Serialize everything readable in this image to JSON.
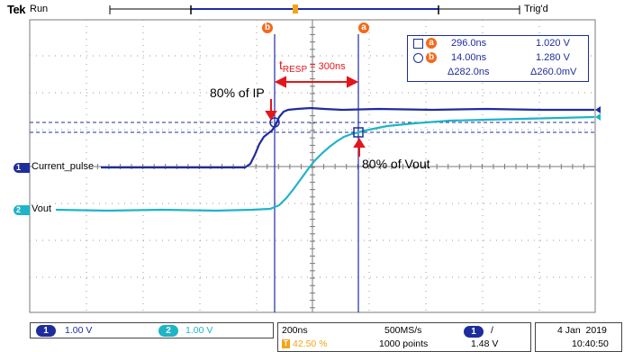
{
  "header": {
    "brand": "Tek",
    "acq_state": "Run",
    "trigger_status": "Trig'd"
  },
  "cursors": {
    "a_label": "a",
    "b_label": "b",
    "readout": {
      "a_time": "296.0ns",
      "a_value": "1.020 V",
      "b_time": "14.00ns",
      "b_value": "1.280 V",
      "delta_time": "Δ282.0ns",
      "delta_value": "Δ260.0mV"
    }
  },
  "annotations": {
    "tresp_main": "t",
    "tresp_sub": "RESP",
    "tresp_value": " = 300ns",
    "ip_label": "80% of IP",
    "vout_label": "80% of Vout"
  },
  "channels": {
    "ch1": {
      "number": "1",
      "label": "Current_pulse",
      "scale": "1.00 V",
      "color": "#1e2d9c"
    },
    "ch2": {
      "number": "2",
      "label": "Vout",
      "scale": "1.00 V",
      "color": "#1fb4c8"
    }
  },
  "status_bar": {
    "timebase": "200ns",
    "trigger_position": "42.50 %",
    "sample_rate": "500MS/s",
    "record_length": "1000 points",
    "trigger_source": "1",
    "trigger_slope": "/",
    "trigger_level": "1.48 V",
    "date": "4 Jan  2019",
    "time": "10:40:50"
  },
  "colors": {
    "ch1": "#1e2d9c",
    "ch2": "#1fb4c8",
    "cursor": "#1e2d9c",
    "marker": "#f26a1b",
    "annotation_arrow": "#e3161b",
    "grid": "#888888"
  }
}
